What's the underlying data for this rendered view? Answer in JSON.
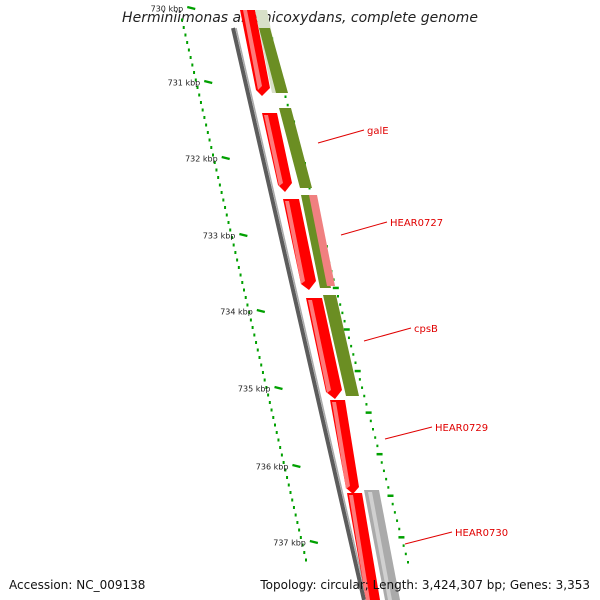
{
  "title": "Herminiimonas arsenicoxydans, complete genome",
  "footer": {
    "accession": "Accession: NC_009138",
    "stats": "Topology: circular; Length: 3,424,307 bp; Genes: 3,353"
  },
  "scale_labels": [
    "730 kbp",
    "731 kbp",
    "732 kbp",
    "733 kbp",
    "734 kbp",
    "735 kbp",
    "736 kbp",
    "737 kbp"
  ],
  "gene_labels": [
    "galE",
    "HEAR0727",
    "cpsB",
    "HEAR0729",
    "HEAR0730"
  ],
  "colors": {
    "cds": "#ff0000",
    "cds_light": "#f08080",
    "cog_olive": "#6b8e23",
    "cog_grey": "#aaaaaa",
    "cog_pale": "#d8e0c8",
    "tick": "#00a000",
    "backbone": "#777777",
    "label": "#e00000"
  }
}
